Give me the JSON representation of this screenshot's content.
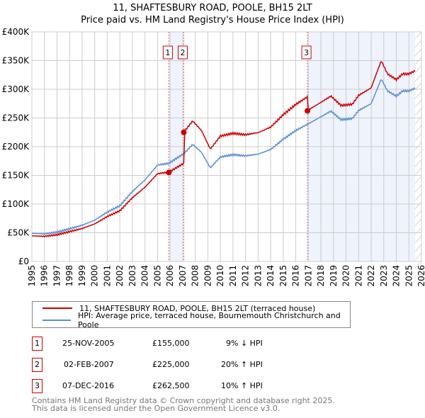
{
  "chart_data": {
    "type": "line",
    "title": "11, SHAFTESBURY ROAD, POOLE, BH15 2LT",
    "subtitle": "Price paid vs. HM Land Registry's House Price Index (HPI)",
    "xlabel": "",
    "ylabel": "",
    "xlim": [
      1995,
      2026
    ],
    "ylim": [
      0,
      400000
    ],
    "yticks": [
      0,
      50000,
      100000,
      150000,
      200000,
      250000,
      300000,
      350000,
      400000
    ],
    "ytick_labels": [
      "£0",
      "£50K",
      "£100K",
      "£150K",
      "£200K",
      "£250K",
      "£300K",
      "£350K",
      "£400K"
    ],
    "xticks": [
      "1995",
      "1996",
      "1997",
      "1998",
      "1999",
      "2000",
      "2001",
      "2002",
      "2003",
      "2004",
      "2005",
      "2006",
      "2007",
      "2008",
      "2009",
      "2010",
      "2011",
      "2012",
      "2013",
      "2014",
      "2015",
      "2016",
      "2017",
      "2018",
      "2019",
      "2020",
      "2021",
      "2022",
      "2023",
      "2024",
      "2025",
      "2026"
    ],
    "grid": true,
    "series": [
      {
        "name": "HPI: Average price, terraced house, Bournemouth Christchurch and Poole",
        "color": "#5b8fd0",
        "x": [
          1995,
          1996,
          1997,
          1998,
          1999,
          2000,
          2001,
          2002,
          2003,
          2004,
          2004.5,
          2005,
          2005.9,
          2007.1,
          2007.8,
          2008.5,
          2009.2,
          2010,
          2011,
          2012,
          2013,
          2014,
          2015,
          2016,
          2016.93,
          2018,
          2018.8,
          2019.6,
          2020.5,
          2021,
          2022,
          2022.8,
          2023.3,
          2024,
          2024.5,
          2025,
          2025.5
        ],
        "y": [
          49000,
          48000,
          51000,
          57000,
          63000,
          72000,
          86000,
          97000,
          122000,
          142000,
          155000,
          168000,
          171000,
          188000,
          204000,
          190000,
          163000,
          182000,
          186000,
          184000,
          187000,
          195000,
          213000,
          228000,
          239000,
          252000,
          262000,
          247000,
          249000,
          263000,
          275000,
          318000,
          297000,
          288000,
          297000,
          297000,
          302000
        ]
      },
      {
        "name": "11, SHAFTESBURY ROAD, POOLE, BH15 2LT (terraced house)",
        "color": "#cc0000",
        "derived_from_hpi": true,
        "factors": [
          {
            "until": 2007.09,
            "factor": 0.91
          },
          {
            "until": 2016.93,
            "factor": 1.2
          },
          {
            "until": 2026,
            "factor": 1.1
          }
        ]
      }
    ],
    "sales": [
      {
        "n": "1",
        "x": 2005.9,
        "price": 155000,
        "date": "25-NOV-2005",
        "price_label": "£155,000",
        "hpi": "9% ↓ HPI"
      },
      {
        "n": "2",
        "x": 2007.09,
        "price": 225000,
        "date": "02-FEB-2007",
        "price_label": "£225,000",
        "hpi": "20% ↑ HPI"
      },
      {
        "n": "3",
        "x": 2016.93,
        "price": 262500,
        "date": "07-DEC-2016",
        "price_label": "£262,500",
        "hpi": "10% ↑ HPI"
      }
    ],
    "shaded_ranges": [
      [
        2005.9,
        2007.09
      ],
      [
        2016.93,
        2025.5
      ]
    ],
    "legend_position": "bottom"
  },
  "footer": [
    "Contains HM Land Registry data © Crown copyright and database right 2025.",
    "This data is licensed under the Open Government Licence v3.0."
  ]
}
